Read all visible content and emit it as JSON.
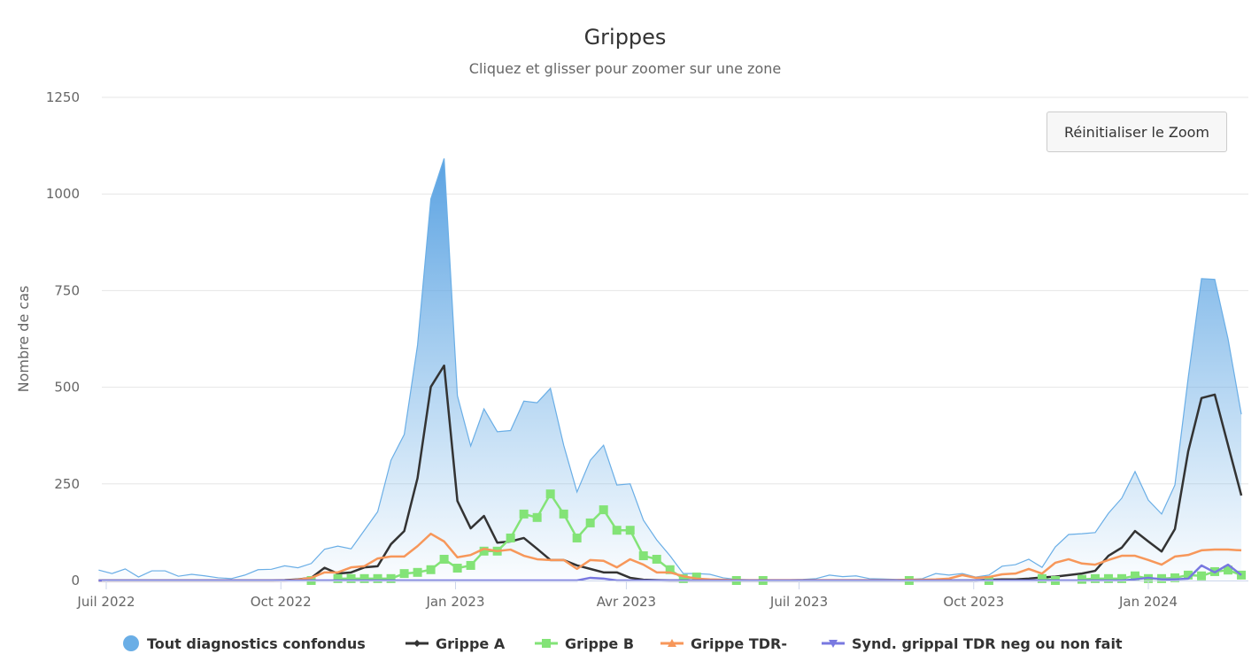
{
  "chart_data": {
    "type": "area",
    "title": "Grippes",
    "subtitle": "Cliquez et glisser pour zoomer sur une zone",
    "ylabel": "Nombre de cas",
    "ylim": [
      0,
      1250
    ],
    "yticks": [
      0,
      250,
      500,
      750,
      1000,
      1250
    ],
    "xticks": [
      {
        "date": "2022-07-01",
        "label": "Juil 2022"
      },
      {
        "date": "2022-10-01",
        "label": "Oct 2022"
      },
      {
        "date": "2023-01-01",
        "label": "Jan 2023"
      },
      {
        "date": "2023-04-01",
        "label": "Avr 2023"
      },
      {
        "date": "2023-07-01",
        "label": "Juil 2023"
      },
      {
        "date": "2023-10-01",
        "label": "Oct 2023"
      },
      {
        "date": "2024-01-01",
        "label": "Jan 2024"
      }
    ],
    "grid": true,
    "legend_placement": "bottom",
    "x": [
      "2022-06-27",
      "2022-07-04",
      "2022-07-11",
      "2022-07-18",
      "2022-07-25",
      "2022-08-01",
      "2022-08-08",
      "2022-08-15",
      "2022-08-22",
      "2022-08-29",
      "2022-09-05",
      "2022-09-12",
      "2022-09-19",
      "2022-09-26",
      "2022-10-03",
      "2022-10-10",
      "2022-10-17",
      "2022-10-24",
      "2022-10-31",
      "2022-11-07",
      "2022-11-14",
      "2022-11-21",
      "2022-11-28",
      "2022-12-05",
      "2022-12-12",
      "2022-12-19",
      "2022-12-26",
      "2023-01-02",
      "2023-01-09",
      "2023-01-16",
      "2023-01-23",
      "2023-01-30",
      "2023-02-06",
      "2023-02-13",
      "2023-02-20",
      "2023-02-27",
      "2023-03-06",
      "2023-03-13",
      "2023-03-20",
      "2023-03-27",
      "2023-04-03",
      "2023-04-10",
      "2023-04-17",
      "2023-04-24",
      "2023-05-01",
      "2023-05-08",
      "2023-05-15",
      "2023-05-22",
      "2023-05-29",
      "2023-06-05",
      "2023-06-12",
      "2023-06-19",
      "2023-06-26",
      "2023-07-03",
      "2023-07-10",
      "2023-07-17",
      "2023-07-24",
      "2023-07-31",
      "2023-08-07",
      "2023-08-14",
      "2023-08-21",
      "2023-08-28",
      "2023-09-04",
      "2023-09-11",
      "2023-09-18",
      "2023-09-25",
      "2023-10-02",
      "2023-10-09",
      "2023-10-16",
      "2023-10-23",
      "2023-10-30",
      "2023-11-06",
      "2023-11-13",
      "2023-11-20",
      "2023-11-27",
      "2023-12-04",
      "2023-12-11",
      "2023-12-18",
      "2023-12-25",
      "2024-01-01",
      "2024-01-08",
      "2024-01-15",
      "2024-01-22",
      "2024-01-29",
      "2024-02-05",
      "2024-02-12",
      "2024-02-19"
    ],
    "series": [
      {
        "name": "Tout diagnostics confondus",
        "kind": "area",
        "color": "#6aaee6",
        "marker": "circle",
        "values": [
          27,
          18,
          30,
          9,
          25,
          25,
          11,
          16,
          12,
          7,
          5,
          14,
          28,
          29,
          38,
          33,
          44,
          81,
          89,
          82,
          130,
          178,
          311,
          378,
          609,
          987,
          1092,
          478,
          348,
          444,
          385,
          388,
          464,
          460,
          497,
          350,
          229,
          311,
          350,
          247,
          250,
          156,
          105,
          64,
          18,
          18,
          16,
          7,
          3,
          2,
          1,
          1,
          2,
          3,
          5,
          14,
          10,
          12,
          5,
          4,
          3,
          3,
          5,
          18,
          14,
          18,
          9,
          14,
          37,
          41,
          55,
          34,
          87,
          119,
          121,
          124,
          174,
          213,
          282,
          208,
          172,
          247,
          524,
          781,
          779,
          625,
          430
        ]
      },
      {
        "name": "Grippe A",
        "kind": "line",
        "color": "#333333",
        "marker": "diamond",
        "values": [
          0,
          0,
          0,
          0,
          0,
          0,
          0,
          0,
          0,
          0,
          0,
          0,
          0,
          0,
          1,
          3,
          7,
          33,
          18,
          21,
          34,
          37,
          94,
          128,
          265,
          501,
          556,
          206,
          135,
          167,
          98,
          101,
          110,
          82,
          53,
          53,
          39,
          30,
          21,
          21,
          7,
          2,
          1,
          0,
          0,
          0,
          0,
          0,
          0,
          0,
          0,
          0,
          0,
          0,
          0,
          0,
          0,
          0,
          0,
          0,
          0,
          0,
          0,
          0,
          0,
          0,
          0,
          2,
          3,
          3,
          5,
          8,
          10,
          14,
          18,
          25,
          64,
          85,
          128,
          101,
          75,
          133,
          334,
          472,
          481,
          350,
          220
        ]
      },
      {
        "name": "Grippe B",
        "kind": "line",
        "color": "#83e377",
        "marker": "square",
        "values": [
          null,
          null,
          null,
          null,
          null,
          null,
          null,
          null,
          null,
          null,
          null,
          null,
          null,
          null,
          null,
          null,
          0,
          null,
          5,
          5,
          5,
          5,
          5,
          18,
          21,
          28,
          55,
          32,
          39,
          76,
          76,
          110,
          172,
          163,
          224,
          172,
          110,
          149,
          183,
          130,
          130,
          64,
          55,
          28,
          5,
          9,
          null,
          null,
          0,
          null,
          0,
          null,
          null,
          null,
          null,
          null,
          null,
          null,
          null,
          null,
          null,
          0,
          null,
          null,
          null,
          null,
          null,
          0,
          null,
          null,
          null,
          5,
          0,
          null,
          3,
          5,
          5,
          5,
          12,
          5,
          5,
          7,
          14,
          12,
          23,
          27,
          14
        ]
      },
      {
        "name": "Grippe TDR-",
        "kind": "line",
        "color": "#f7975a",
        "marker": "triangle",
        "values": [
          0,
          0,
          0,
          0,
          0,
          0,
          0,
          0,
          0,
          0,
          0,
          0,
          0,
          0,
          0,
          2,
          7,
          21,
          21,
          34,
          37,
          57,
          62,
          62,
          89,
          121,
          101,
          60,
          66,
          82,
          76,
          80,
          64,
          55,
          53,
          53,
          30,
          53,
          51,
          34,
          55,
          41,
          21,
          21,
          11,
          5,
          3,
          2,
          1,
          1,
          1,
          1,
          1,
          1,
          1,
          1,
          1,
          1,
          1,
          1,
          1,
          2,
          2,
          3,
          5,
          14,
          7,
          9,
          16,
          18,
          30,
          18,
          46,
          55,
          44,
          41,
          53,
          64,
          64,
          53,
          41,
          62,
          66,
          78,
          80,
          80,
          78
        ]
      },
      {
        "name": "Synd. grippal TDR neg ou non fait",
        "kind": "line",
        "color": "#7878e0",
        "marker": "triangle-down",
        "values": [
          0,
          0,
          0,
          0,
          0,
          0,
          0,
          0,
          0,
          0,
          0,
          0,
          0,
          0,
          0,
          0,
          0,
          0,
          0,
          0,
          0,
          0,
          0,
          0,
          0,
          0,
          0,
          0,
          0,
          0,
          0,
          0,
          0,
          0,
          0,
          0,
          0,
          7,
          5,
          0,
          0,
          0,
          0,
          0,
          0,
          0,
          0,
          0,
          0,
          0,
          0,
          0,
          0,
          0,
          0,
          0,
          0,
          0,
          0,
          0,
          0,
          0,
          0,
          0,
          0,
          0,
          0,
          0,
          0,
          0,
          0,
          0,
          0,
          0,
          0,
          0,
          0,
          0,
          3,
          7,
          3,
          3,
          5,
          39,
          21,
          41,
          14
        ]
      }
    ]
  },
  "reset_zoom_label": "Réinitialiser le Zoom"
}
